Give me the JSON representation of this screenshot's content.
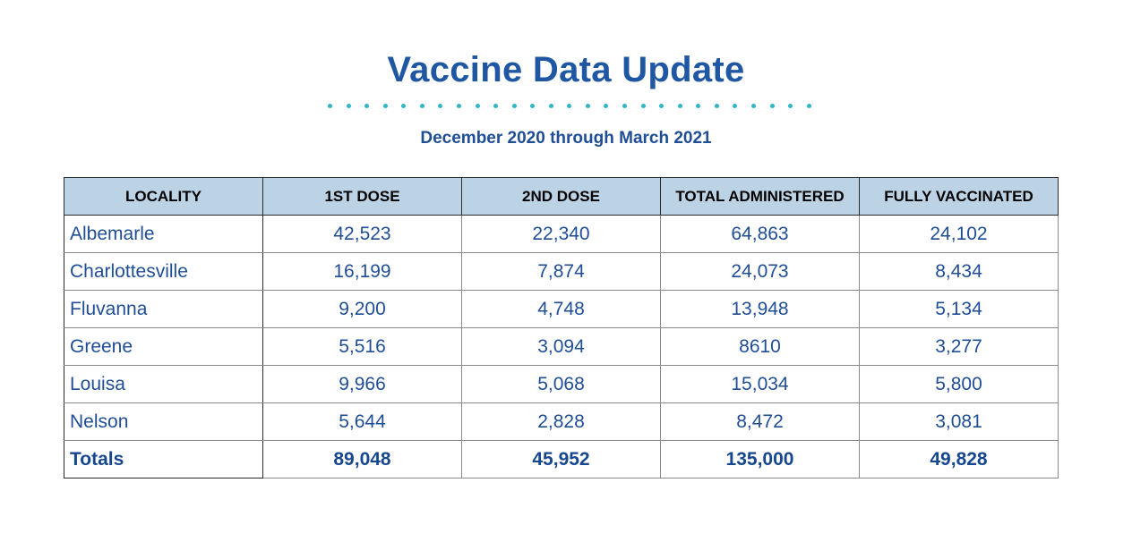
{
  "title": "Vaccine Data Update",
  "subtitle": "December 2020 through March 2021",
  "colors": {
    "title": "#1f57a3",
    "dots": "#2fb7c9",
    "header_bg": "#bcd3e6",
    "body_text": "#1f4e96"
  },
  "table": {
    "headers": [
      "LOCALITY",
      "1ST DOSE",
      "2ND DOSE",
      "TOTAL ADMINISTERED",
      "FULLY VACCINATED"
    ],
    "rows": [
      [
        "Albemarle",
        "42,523",
        "22,340",
        "64,863",
        "24,102"
      ],
      [
        "Charlottesville",
        "16,199",
        "7,874",
        "24,073",
        "8,434"
      ],
      [
        "Fluvanna",
        "9,200",
        "4,748",
        "13,948",
        "5,134"
      ],
      [
        "Greene",
        "5,516",
        "3,094",
        "8610",
        "3,277"
      ],
      [
        "Louisa",
        "9,966",
        "5,068",
        "15,034",
        "5,800"
      ],
      [
        "Nelson",
        "5,644",
        "2,828",
        "8,472",
        "3,081"
      ]
    ],
    "totals": [
      "Totals",
      "89,048",
      "45,952",
      "135,000",
      "49,828"
    ]
  }
}
